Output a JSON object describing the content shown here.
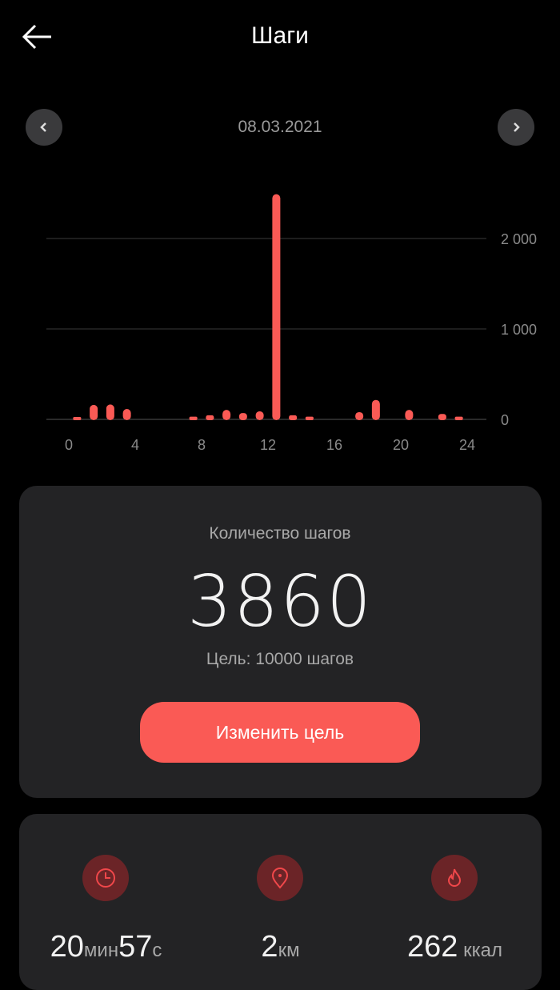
{
  "header": {
    "title": "Шаги",
    "back_icon": "arrow-left-icon"
  },
  "date_nav": {
    "date": "08.03.2021",
    "prev_icon": "chevron-left-icon",
    "next_icon": "chevron-right-icon"
  },
  "chart_data": {
    "type": "bar",
    "x": [
      0,
      1,
      2,
      3,
      7,
      8,
      9,
      10,
      11,
      12,
      13,
      14,
      17,
      18,
      20,
      22,
      23
    ],
    "values": [
      25,
      160,
      165,
      115,
      30,
      45,
      105,
      70,
      90,
      2490,
      45,
      30,
      80,
      215,
      105,
      60,
      30
    ],
    "xticks": [
      "0",
      "4",
      "8",
      "12",
      "16",
      "20",
      "24"
    ],
    "yticks": [
      "0",
      "1 000",
      "2 000"
    ],
    "xlim": [
      0,
      24
    ],
    "ylim": [
      0,
      2500
    ],
    "grid": true,
    "color": "#fa5a55"
  },
  "summary": {
    "label": "Количество шагов",
    "steps": "3860",
    "goal": "Цель: 10000 шагов",
    "button": "Изменить цель"
  },
  "stats": [
    {
      "icon": "clock-icon",
      "parts": [
        [
          "20",
          "мин"
        ],
        [
          "57",
          "с"
        ]
      ]
    },
    {
      "icon": "location-pin-icon",
      "parts": [
        [
          "2",
          "км"
        ]
      ]
    },
    {
      "icon": "flame-icon",
      "parts": [
        [
          "262",
          " ккал"
        ]
      ]
    }
  ],
  "colors": {
    "accent": "#fa5a55",
    "card": "#232325",
    "icon_bg": "#6b2427"
  }
}
